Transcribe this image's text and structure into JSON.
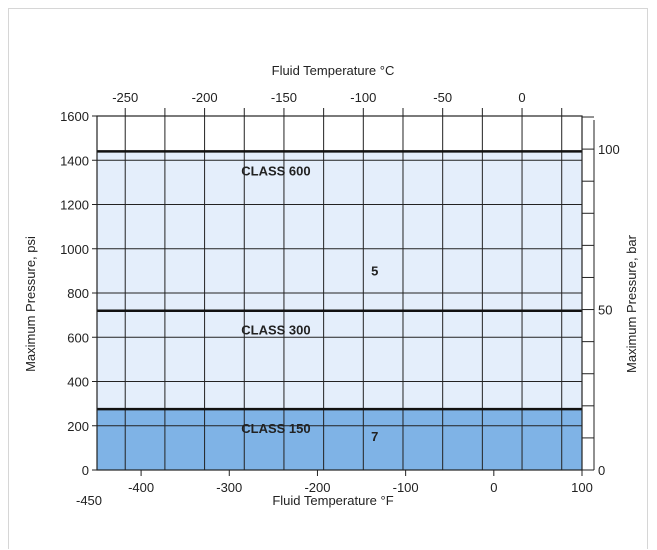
{
  "chart_data": {
    "type": "area",
    "title": "",
    "x_top": {
      "label": "Fluid Temperature °C",
      "ticks": [
        -250,
        -200,
        -150,
        -100,
        -50,
        0
      ],
      "tick_labels": [
        "-250",
        "-200",
        "-150",
        "-100",
        "-50",
        "0"
      ]
    },
    "x_bottom": {
      "label": "Fluid Temperature °F",
      "range": [
        -450,
        100
      ],
      "ticks": [
        -400,
        -300,
        -200,
        -100,
        0,
        100
      ],
      "tick_labels": [
        "-400",
        "-300",
        "-200",
        "-100",
        "0",
        "100"
      ],
      "start_label": "-450"
    },
    "y_left": {
      "label": "Maximum Pressure, psi",
      "range": [
        0,
        1600
      ],
      "ticks": [
        0,
        200,
        400,
        600,
        800,
        1000,
        1200,
        1400,
        1600
      ],
      "tick_labels": [
        "0",
        "200",
        "400",
        "600",
        "800",
        "1000",
        "1200",
        "1400",
        "1600"
      ]
    },
    "y_right": {
      "label": "Maximum Pressure, bar",
      "ticks": [
        0,
        50,
        100
      ],
      "tick_labels": [
        "0",
        "50",
        "100"
      ]
    },
    "series": [
      {
        "name": "CLASS 150",
        "pressure_psi": 275,
        "x_range_F": [
          -450,
          100
        ]
      },
      {
        "name": "CLASS 300",
        "pressure_psi": 720,
        "x_range_F": [
          -450,
          100
        ]
      },
      {
        "name": "CLASS 600",
        "pressure_psi": 1440,
        "x_range_F": [
          -450,
          100
        ]
      }
    ],
    "regions": [
      {
        "label": "7",
        "from_psi": 0,
        "to_psi": 275,
        "color": "#7fb3e6"
      },
      {
        "label": "5",
        "from_psi": 275,
        "to_psi": 1440,
        "color": "#e4eefb"
      }
    ],
    "grid": true
  }
}
